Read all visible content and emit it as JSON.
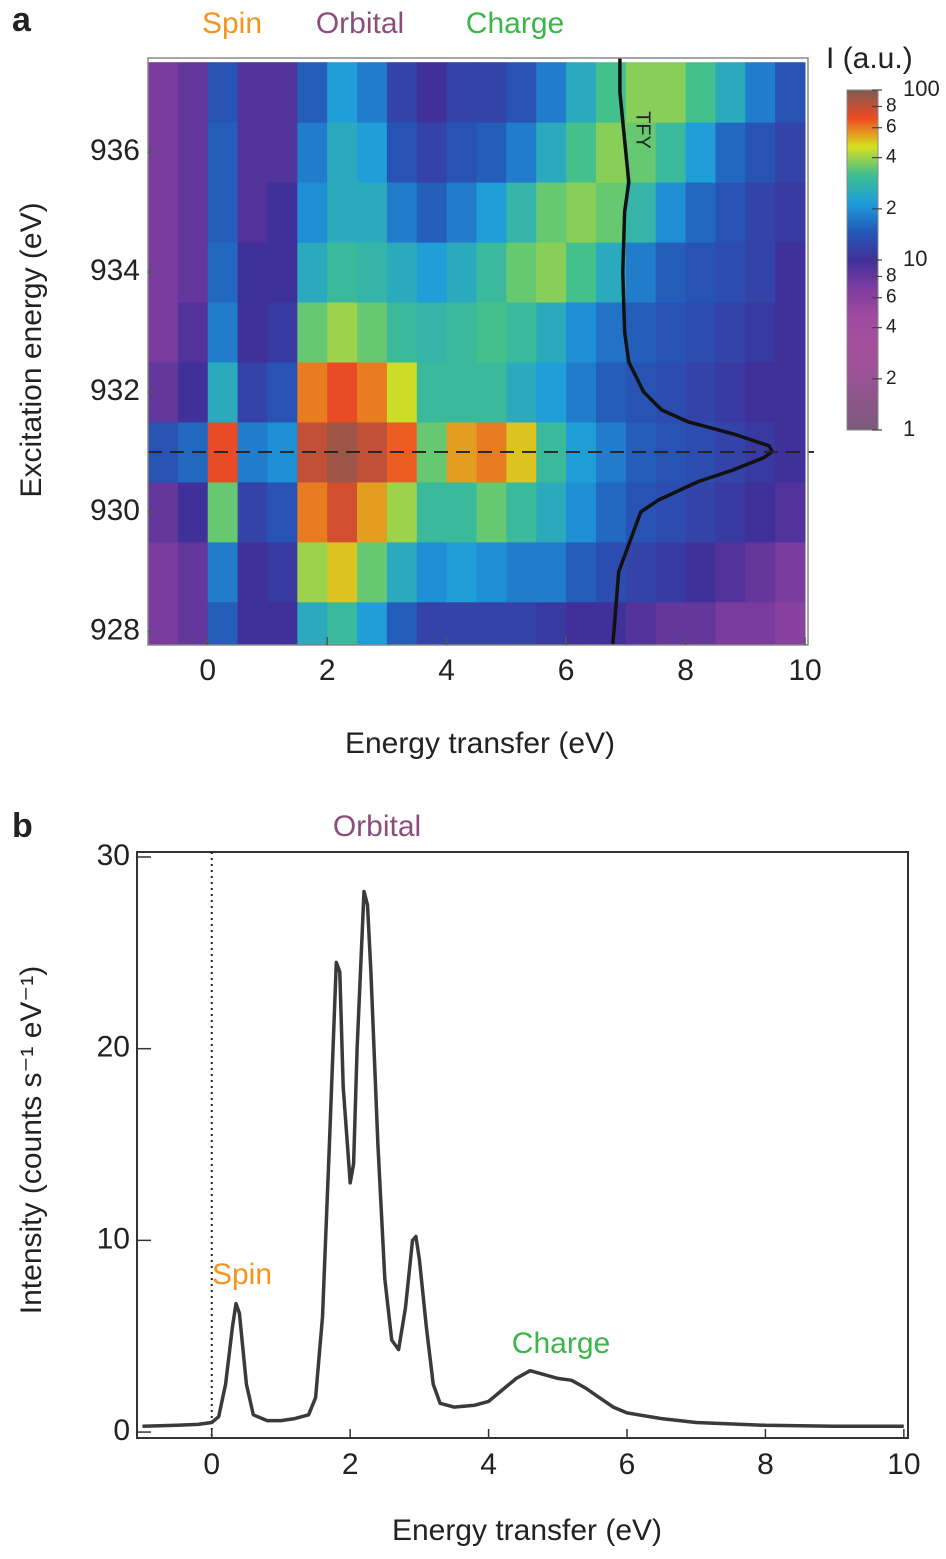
{
  "chart_data": [
    {
      "type": "heatmap",
      "panel": "a",
      "annotations": [
        {
          "text": "Spin",
          "color": "#f7941d"
        },
        {
          "text": "Orbital",
          "color": "#8b4d7c"
        },
        {
          "text": "Charge",
          "color": "#3cb54a"
        }
      ],
      "xlabel": "Energy transfer (eV)",
      "ylabel": "Excitation energy (eV)",
      "x": [
        -0.75,
        -0.25,
        0.25,
        0.75,
        1.25,
        1.75,
        2.25,
        2.75,
        3.25,
        3.75,
        4.25,
        4.75,
        5.25,
        5.75,
        6.25,
        6.75,
        7.25,
        7.75,
        8.25,
        8.75,
        9.25,
        9.75
      ],
      "y": [
        928,
        929,
        930,
        931,
        932,
        933,
        934,
        935,
        936,
        937
      ],
      "z": [
        [
          7,
          8,
          15,
          10,
          10,
          25,
          30,
          22,
          15,
          12,
          12,
          12,
          12,
          11,
          10,
          10,
          9,
          8,
          8,
          7,
          7,
          6
        ],
        [
          7,
          8,
          18,
          10,
          11,
          40,
          50,
          35,
          25,
          20,
          22,
          20,
          18,
          18,
          15,
          13,
          12,
          11,
          10,
          9,
          8,
          7
        ],
        [
          8,
          10,
          35,
          12,
          14,
          60,
          75,
          55,
          40,
          30,
          30,
          35,
          30,
          25,
          20,
          16,
          14,
          13,
          12,
          11,
          10,
          9
        ],
        [
          14,
          16,
          70,
          18,
          20,
          80,
          90,
          80,
          65,
          35,
          55,
          60,
          50,
          30,
          22,
          18,
          15,
          14,
          13,
          12,
          11,
          10
        ],
        [
          8,
          10,
          25,
          12,
          14,
          60,
          70,
          60,
          45,
          30,
          30,
          30,
          25,
          22,
          18,
          15,
          14,
          13,
          12,
          11,
          10,
          10
        ],
        [
          7,
          9,
          18,
          10,
          11,
          35,
          40,
          35,
          30,
          28,
          30,
          32,
          30,
          25,
          20,
          17,
          15,
          14,
          13,
          12,
          11,
          10
        ],
        [
          7,
          8,
          16,
          10,
          10,
          25,
          30,
          28,
          25,
          22,
          25,
          30,
          35,
          38,
          32,
          25,
          18,
          15,
          14,
          13,
          12,
          10
        ],
        [
          7,
          8,
          15,
          9,
          10,
          20,
          25,
          25,
          18,
          15,
          18,
          22,
          28,
          35,
          38,
          35,
          28,
          20,
          16,
          14,
          12,
          11
        ],
        [
          7,
          8,
          15,
          9,
          9,
          18,
          25,
          22,
          14,
          12,
          14,
          15,
          18,
          25,
          32,
          38,
          35,
          30,
          22,
          16,
          14,
          12
        ],
        [
          7,
          8,
          14,
          9,
          9,
          15,
          22,
          18,
          12,
          10,
          12,
          12,
          14,
          18,
          25,
          32,
          38,
          38,
          32,
          25,
          18,
          14
        ]
      ],
      "xlim": [
        -1,
        10.05
      ],
      "ylim": [
        927.78,
        937.57
      ],
      "xticks": [
        0,
        2,
        4,
        6,
        8,
        10
      ],
      "yticks": [
        928,
        930,
        932,
        934,
        936
      ],
      "hline": 931,
      "tfy": {
        "name": "TFY",
        "color": "#111111",
        "y": [
          927.8,
          928,
          929,
          930,
          930.2,
          930.5,
          930.7,
          930.9,
          931,
          931.1,
          931.3,
          931.5,
          931.7,
          932,
          932.5,
          933,
          934,
          935,
          935.5,
          936,
          937,
          937.6
        ],
        "x": [
          6.78,
          6.8,
          6.88,
          7.25,
          7.55,
          8.2,
          8.8,
          9.3,
          9.45,
          9.4,
          8.8,
          8.05,
          7.6,
          7.3,
          7.05,
          6.98,
          6.95,
          6.98,
          7.05,
          7.0,
          6.9,
          6.9
        ]
      },
      "colorbar": {
        "label": "I (a.u.)",
        "log": true,
        "lim": [
          1,
          100
        ],
        "ticks": [
          1,
          2,
          4,
          6,
          8,
          10,
          {
            "value": 20,
            "label": "2"
          },
          {
            "value": 40,
            "label": "4"
          },
          {
            "value": 60,
            "label": "6"
          },
          {
            "value": 80,
            "label": "8"
          },
          100
        ],
        "colors": [
          "#7a5a7c",
          "#8c5689",
          "#9b5296",
          "#a54f9d",
          "#a04aa0",
          "#7e3c9f",
          "#40309a",
          "#2459b8",
          "#1e9cdc",
          "#3fbf8f",
          "#d8e020",
          "#f04a22",
          "#7e5a52"
        ]
      }
    },
    {
      "type": "line",
      "panel": "b",
      "annotations": [
        {
          "text": "Orbital",
          "color": "#8b4d7c"
        },
        {
          "text": "Spin",
          "color": "#f7941d"
        },
        {
          "text": "Charge",
          "color": "#3cb54a"
        }
      ],
      "xlabel": "Energy transfer (eV)",
      "ylabel": "Intensity (counts s⁻¹ eV⁻¹)",
      "color": "#3a3a3a",
      "x": [
        -1.0,
        -0.5,
        -0.2,
        0,
        0.1,
        0.2,
        0.3,
        0.35,
        0.4,
        0.5,
        0.6,
        0.8,
        1.0,
        1.2,
        1.4,
        1.5,
        1.6,
        1.7,
        1.8,
        1.85,
        1.9,
        2.0,
        2.05,
        2.1,
        2.2,
        2.25,
        2.3,
        2.4,
        2.5,
        2.6,
        2.7,
        2.8,
        2.9,
        2.95,
        3.0,
        3.1,
        3.2,
        3.3,
        3.5,
        3.8,
        4.0,
        4.2,
        4.4,
        4.6,
        4.8,
        5.0,
        5.2,
        5.4,
        5.6,
        5.8,
        6.0,
        6.5,
        7.0,
        8.0,
        9.0,
        10.0
      ],
      "values": [
        0.3,
        0.35,
        0.4,
        0.5,
        0.8,
        2.5,
        5.5,
        6.7,
        6.2,
        2.5,
        0.9,
        0.6,
        0.6,
        0.7,
        0.9,
        1.8,
        6,
        15,
        24.5,
        24,
        18,
        13,
        14,
        20,
        28.2,
        27.5,
        24,
        15,
        8,
        4.8,
        4.3,
        6.5,
        10,
        10.2,
        9,
        5.5,
        2.5,
        1.5,
        1.3,
        1.4,
        1.6,
        2.2,
        2.8,
        3.2,
        3.0,
        2.8,
        2.7,
        2.3,
        1.8,
        1.3,
        1.0,
        0.7,
        0.5,
        0.35,
        0.3,
        0.3
      ],
      "xlim": [
        -1.08,
        10.06
      ],
      "ylim": [
        -0.31,
        30.26
      ],
      "xticks": [
        0,
        2,
        4,
        6,
        8,
        10
      ],
      "yticks": [
        0,
        10,
        20,
        30
      ],
      "vline": 0
    }
  ]
}
